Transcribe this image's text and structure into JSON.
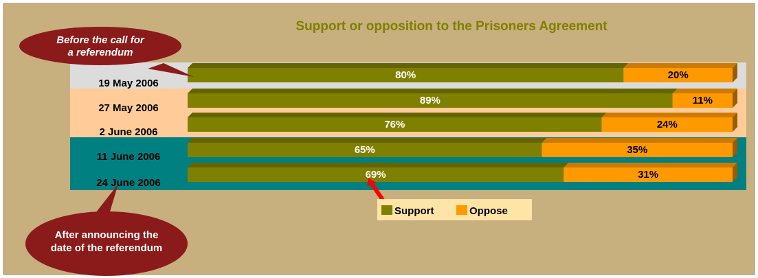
{
  "chart_data": {
    "type": "bar",
    "stacked": true,
    "orientation": "horizontal",
    "title": "Support or opposition to the Prisoners Agreement",
    "categories": [
      "19 May 2006",
      "27 May 2006",
      "2 June 2006",
      "11 June 2006",
      "24 June 2006"
    ],
    "series": [
      {
        "name": "Support",
        "values": [
          80,
          89,
          76,
          65,
          69
        ],
        "labels": [
          "80%",
          "89%",
          "76%",
          "65%",
          "69%"
        ]
      },
      {
        "name": "Oppose",
        "values": [
          20,
          11,
          24,
          35,
          31
        ],
        "labels": [
          "20%",
          "11%",
          "24%",
          "35%",
          "31%"
        ]
      }
    ],
    "xlim": [
      0,
      100
    ],
    "legend_position": "bottom-center",
    "grid": false,
    "annotations": [
      {
        "text": "Before the call for a referendum",
        "lines": [
          "Before the call for",
          "a referendum"
        ]
      },
      {
        "text": "After announcing the date of the referendum",
        "lines": [
          "After announcing the",
          "date of the referendum"
        ]
      }
    ]
  },
  "colors": {
    "page_background": "#C7AF7E",
    "support": "#808000",
    "oppose": "#FF9900",
    "band_period_1": "#DCDCDC",
    "band_period_2": "#FFCC99",
    "band_period_3": "#008080",
    "title": "#808000",
    "callout": "#8B1A1A",
    "arrow": "#FF0000",
    "legend_background": "#FFE4A8"
  }
}
